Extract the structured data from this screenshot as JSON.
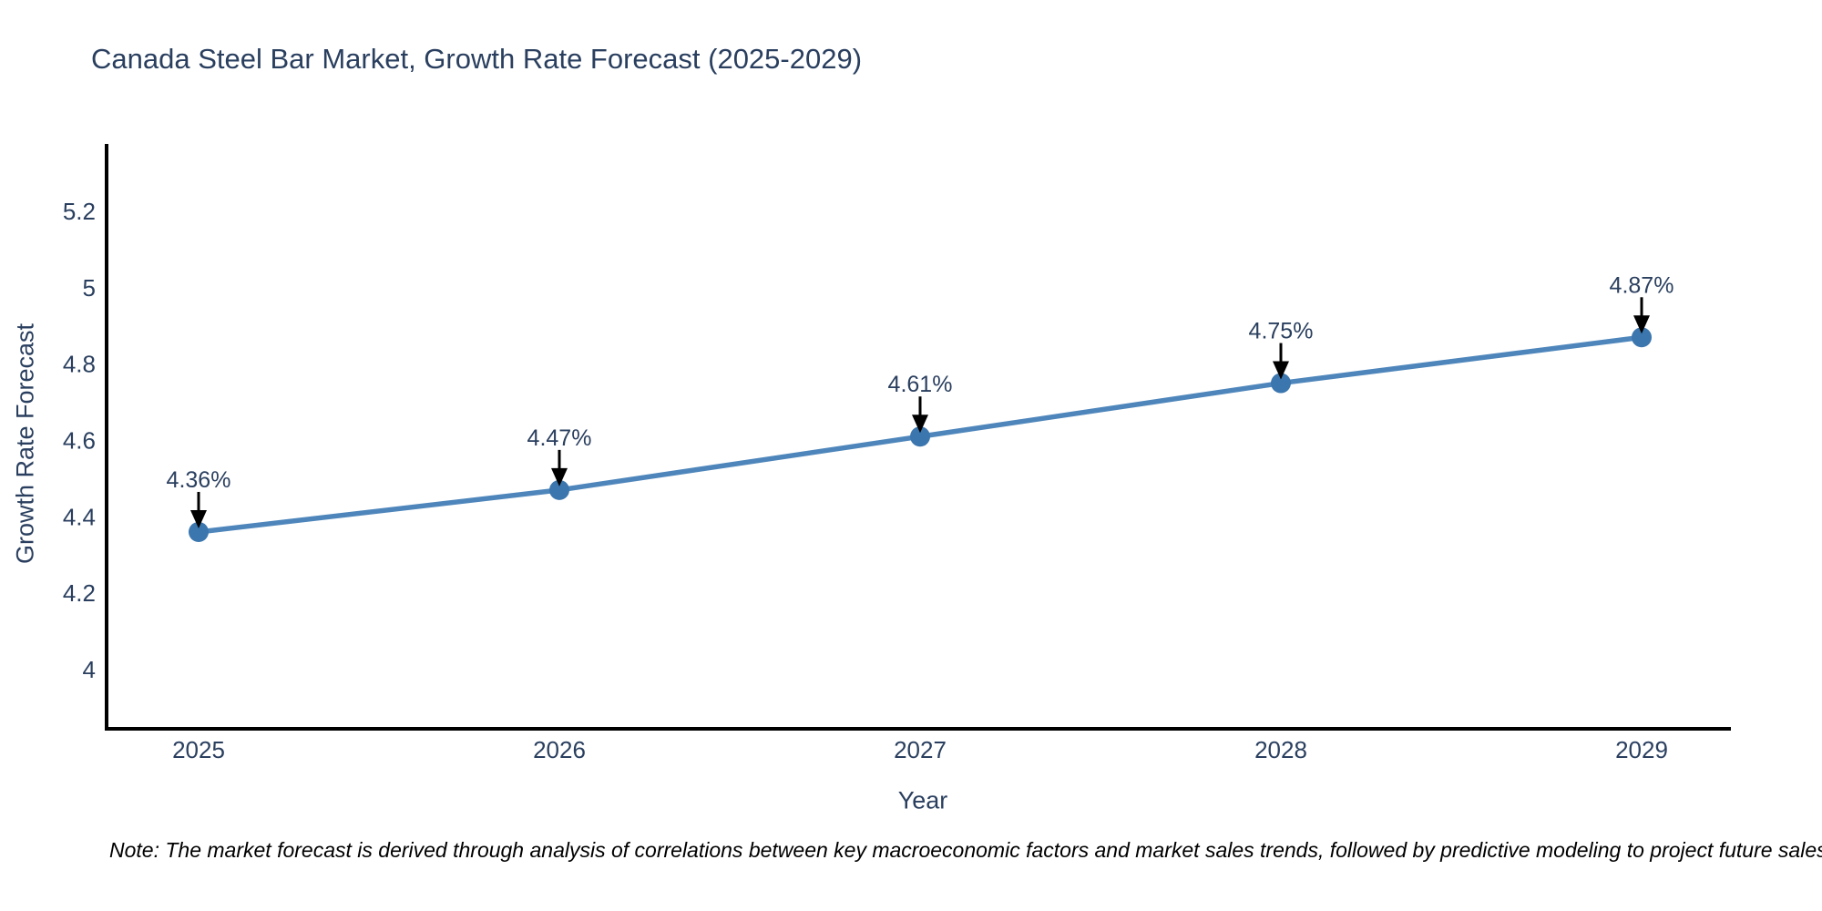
{
  "chart_data": {
    "type": "line",
    "title": "Canada Steel Bar Market, Growth Rate Forecast (2025-2029)",
    "xlabel": "Year",
    "ylabel": "Growth Rate Forecast",
    "categories": [
      "2025",
      "2026",
      "2027",
      "2028",
      "2029"
    ],
    "series": [
      {
        "name": "Growth Rate Forecast",
        "values": [
          4.36,
          4.47,
          4.61,
          4.75,
          4.87
        ],
        "point_labels": [
          "4.36%",
          "4.47%",
          "4.61%",
          "4.75%",
          "4.87%"
        ]
      }
    ],
    "y_ticks": [
      {
        "value": 4,
        "label": "4"
      },
      {
        "value": 4.2,
        "label": "4.2"
      },
      {
        "value": 4.4,
        "label": "4.4"
      },
      {
        "value": 4.6,
        "label": "4.6"
      },
      {
        "value": 4.8,
        "label": "4.8"
      },
      {
        "value": 5,
        "label": "5"
      },
      {
        "value": 5.2,
        "label": "5.2"
      }
    ],
    "ylim": [
      3.84,
      5.38
    ],
    "grid": false,
    "legend": "none",
    "marker_shape": "circle",
    "annotation_arrow": "down-arrow",
    "colors": {
      "line": "#4e86bb",
      "marker": "#3b76ae",
      "text": "#2a3f5f",
      "axis": "#000000",
      "arrow": "#000000",
      "background": "#ffffff",
      "note_text": "#000000"
    },
    "note": "Note: The market forecast is derived through analysis of correlations between key macroeconomic factors and market sales trends, followed by predictive modeling to project future sales"
  }
}
